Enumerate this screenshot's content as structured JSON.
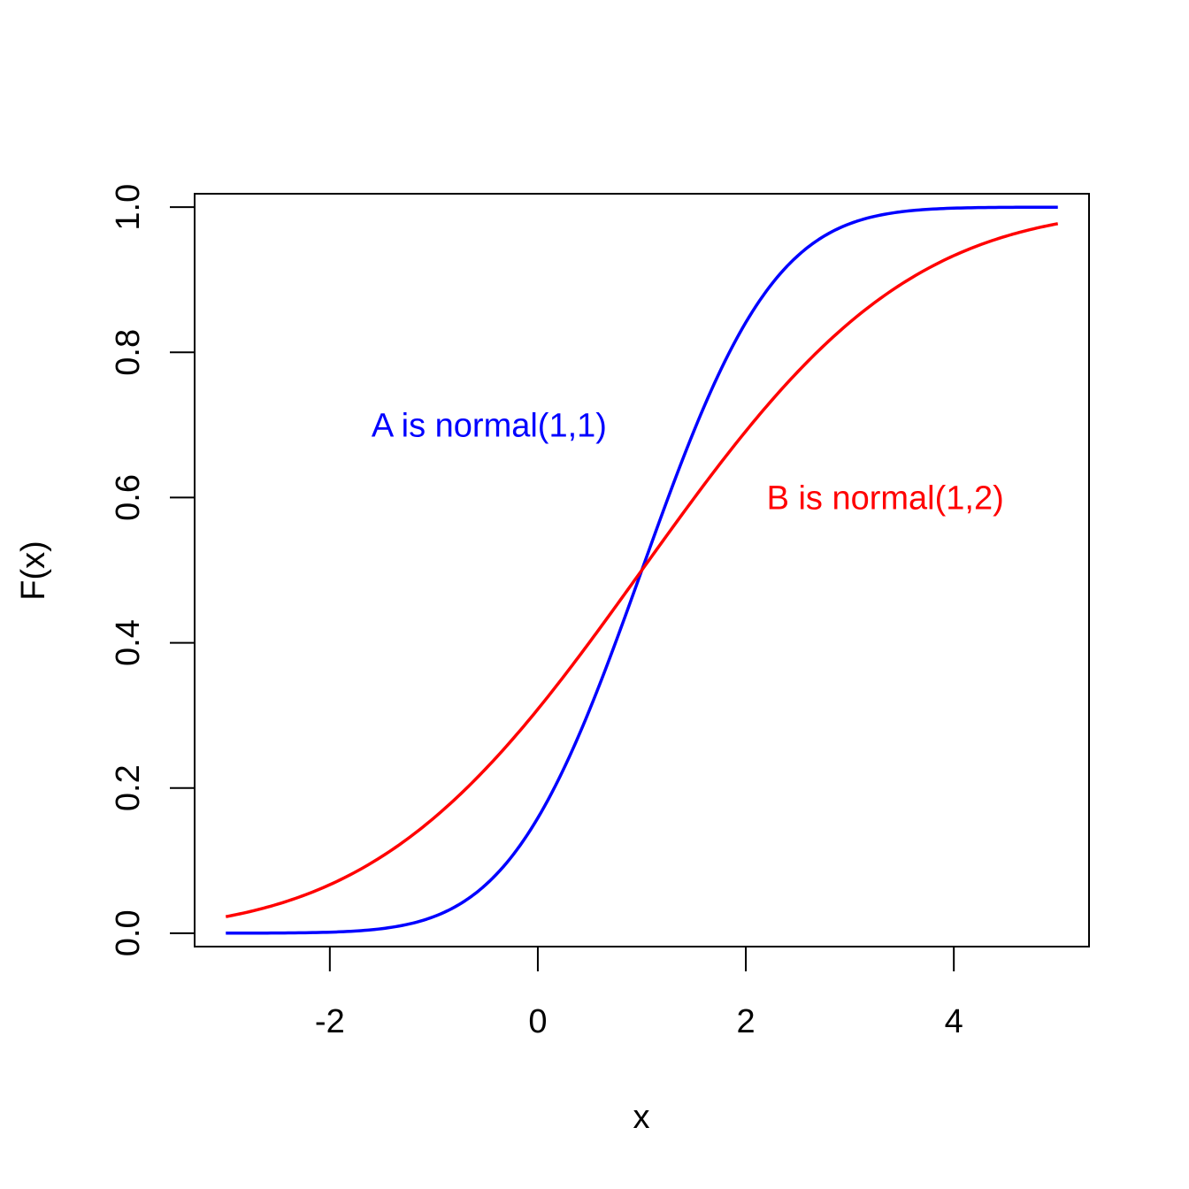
{
  "chart_data": {
    "type": "line",
    "xlabel": "x",
    "ylabel": "F(x)",
    "xlim": [
      -3.3,
      5.3
    ],
    "ylim": [
      -0.0185,
      1.0185
    ],
    "x_ticks": [
      -2,
      0,
      2,
      4
    ],
    "x_tick_labels": [
      "-2",
      "0",
      "2",
      "4"
    ],
    "y_ticks": [
      0.0,
      0.2,
      0.4,
      0.6,
      0.8,
      1.0
    ],
    "y_tick_labels": [
      "0.0",
      "0.2",
      "0.4",
      "0.6",
      "0.8",
      "1.0"
    ],
    "grid": false,
    "series": [
      {
        "color": "#0000ff",
        "x": [
          -3,
          -2.5,
          -2,
          -1.5,
          -1,
          -0.5,
          0,
          0.5,
          1,
          1.5,
          2,
          2.5,
          3,
          3.5,
          4,
          4.5,
          5
        ],
        "y": [
          3e-05,
          0.0002,
          0.0013,
          0.0062,
          0.0228,
          0.0668,
          0.1587,
          0.3085,
          0.5,
          0.6915,
          0.8413,
          0.9332,
          0.9772,
          0.9938,
          0.9987,
          0.9998,
          1.0
        ]
      },
      {
        "color": "#ff0000",
        "x": [
          -3,
          -2.5,
          -2,
          -1.5,
          -1,
          -0.5,
          0,
          0.5,
          1,
          1.5,
          2,
          2.5,
          3,
          3.5,
          4,
          4.5,
          5
        ],
        "y": [
          0.0228,
          0.0401,
          0.0668,
          0.1056,
          0.1587,
          0.2266,
          0.3085,
          0.4013,
          0.5,
          0.5987,
          0.6915,
          0.7734,
          0.8413,
          0.8944,
          0.9332,
          0.9599,
          0.9772
        ]
      }
    ],
    "annotations": [
      {
        "text": "A is normal(1,1)",
        "color": "#0000ff",
        "x": -1.6,
        "y": 0.7
      },
      {
        "text": "B is normal(1,2)",
        "color": "#ff0000",
        "x": 2.2,
        "y": 0.6
      }
    ]
  }
}
